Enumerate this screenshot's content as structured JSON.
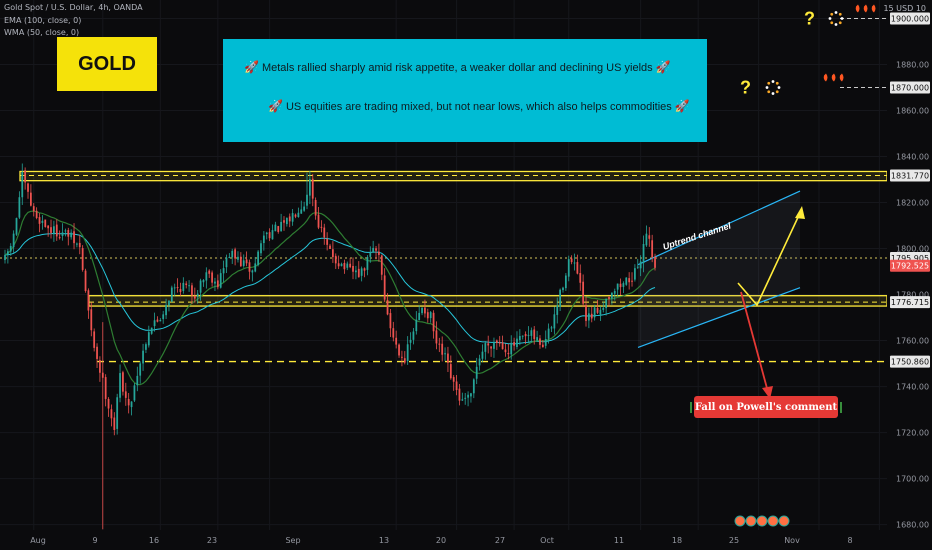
{
  "header": {
    "symbol_line": "Gold Spot / U.S. Dollar, 4h, OANDA",
    "ema_line": "EMA (100, close, 0)",
    "wma_line": "WMA (50, close, 0)",
    "currency": "15 USD 10"
  },
  "badge": {
    "label": "GOLD"
  },
  "news": {
    "line1": "Metals rallied sharply amid risk appetite, a weaker dollar and declining US yields",
    "line2": "US equities are trading mixed, but not near lows, which also helps commodities",
    "emoji": "rocket"
  },
  "callout": {
    "label": "Fall on Powell's comment"
  },
  "annotations": {
    "channel_label": "Uptrend channel",
    "question_mark": "?"
  },
  "colors": {
    "background": "#0b0b0d",
    "up_candle": "#26a69a",
    "down_candle": "#ef5350",
    "ema": "#26c6da",
    "wma": "#2e7d32",
    "support_zone": "#ffeb3b",
    "news_box": "#00bcd4",
    "gold_box": "#f5e20a",
    "callout": "#e53935"
  },
  "chart_data": {
    "type": "candlestick",
    "ylim": [
      1672,
      1905
    ],
    "y_ticks": [
      1680,
      1700,
      1720,
      1740,
      1760,
      1780,
      1800,
      1820,
      1840,
      1860,
      1880,
      1900
    ],
    "x_tick_labels": [
      "Aug",
      "9",
      "16",
      "23",
      "Sep",
      "13",
      "20",
      "27",
      "Oct",
      "11",
      "18",
      "25",
      "Nov",
      "8"
    ],
    "price_labels": [
      {
        "value": "1900.000",
        "price": 1900.0,
        "style": "white"
      },
      {
        "value": "1870.000",
        "price": 1870.0,
        "style": "white"
      },
      {
        "value": "1831.770",
        "price": 1831.77,
        "style": "white"
      },
      {
        "value": "1795.905",
        "price": 1795.905,
        "style": "white"
      },
      {
        "value": "1792.525",
        "price": 1792.525,
        "style": "red"
      },
      {
        "value": "1776.715",
        "price": 1776.715,
        "style": "white"
      },
      {
        "value": "1750.860",
        "price": 1750.86,
        "style": "white"
      }
    ],
    "levels": [
      {
        "price": 1831.77,
        "style": "zone",
        "range": [
          1829.5,
          1833.5
        ]
      },
      {
        "price": 1795.905,
        "style": "dotted"
      },
      {
        "price": 1776.715,
        "style": "zone",
        "range": [
          1775.0,
          1779.5
        ]
      },
      {
        "price": 1750.86,
        "style": "dashed"
      },
      {
        "price": 1900.0,
        "style": "dashed-white"
      },
      {
        "price": 1870.0,
        "style": "dashed-white"
      }
    ],
    "path": [
      [
        0,
        1795
      ],
      [
        3,
        1805
      ],
      [
        6,
        1831
      ],
      [
        10,
        1815
      ],
      [
        16,
        1808
      ],
      [
        22,
        1806
      ],
      [
        26,
        1800
      ],
      [
        30,
        1763
      ],
      [
        34,
        1742
      ],
      [
        38,
        1722
      ],
      [
        40,
        1745
      ],
      [
        43,
        1730
      ],
      [
        46,
        1746
      ],
      [
        50,
        1765
      ],
      [
        54,
        1770
      ],
      [
        58,
        1782
      ],
      [
        62,
        1784
      ],
      [
        66,
        1780
      ],
      [
        70,
        1790
      ],
      [
        74,
        1785
      ],
      [
        78,
        1798
      ],
      [
        82,
        1794
      ],
      [
        86,
        1790
      ],
      [
        90,
        1806
      ],
      [
        94,
        1808
      ],
      [
        98,
        1811
      ],
      [
        102,
        1818
      ],
      [
        104,
        1820
      ],
      [
        106,
        1830
      ],
      [
        108,
        1815
      ],
      [
        112,
        1800
      ],
      [
        116,
        1794
      ],
      [
        120,
        1790
      ],
      [
        124,
        1789
      ],
      [
        128,
        1800
      ],
      [
        130,
        1798
      ],
      [
        133,
        1770
      ],
      [
        136,
        1758
      ],
      [
        139,
        1752
      ],
      [
        142,
        1764
      ],
      [
        145,
        1775
      ],
      [
        148,
        1770
      ],
      [
        150,
        1758
      ],
      [
        153,
        1752
      ],
      [
        156,
        1740
      ],
      [
        159,
        1733
      ],
      [
        162,
        1735
      ],
      [
        164,
        1750
      ],
      [
        167,
        1758
      ],
      [
        171,
        1760
      ],
      [
        175,
        1756
      ],
      [
        179,
        1760
      ],
      [
        183,
        1762
      ],
      [
        187,
        1758
      ],
      [
        190,
        1766
      ],
      [
        193,
        1780
      ],
      [
        196,
        1795
      ],
      [
        199,
        1790
      ],
      [
        202,
        1768
      ],
      [
        205,
        1772
      ],
      [
        208,
        1776
      ],
      [
        211,
        1782
      ],
      [
        214,
        1784
      ],
      [
        217,
        1787
      ],
      [
        220,
        1790
      ],
      [
        223,
        1808
      ],
      [
        226,
        1793
      ]
    ]
  }
}
